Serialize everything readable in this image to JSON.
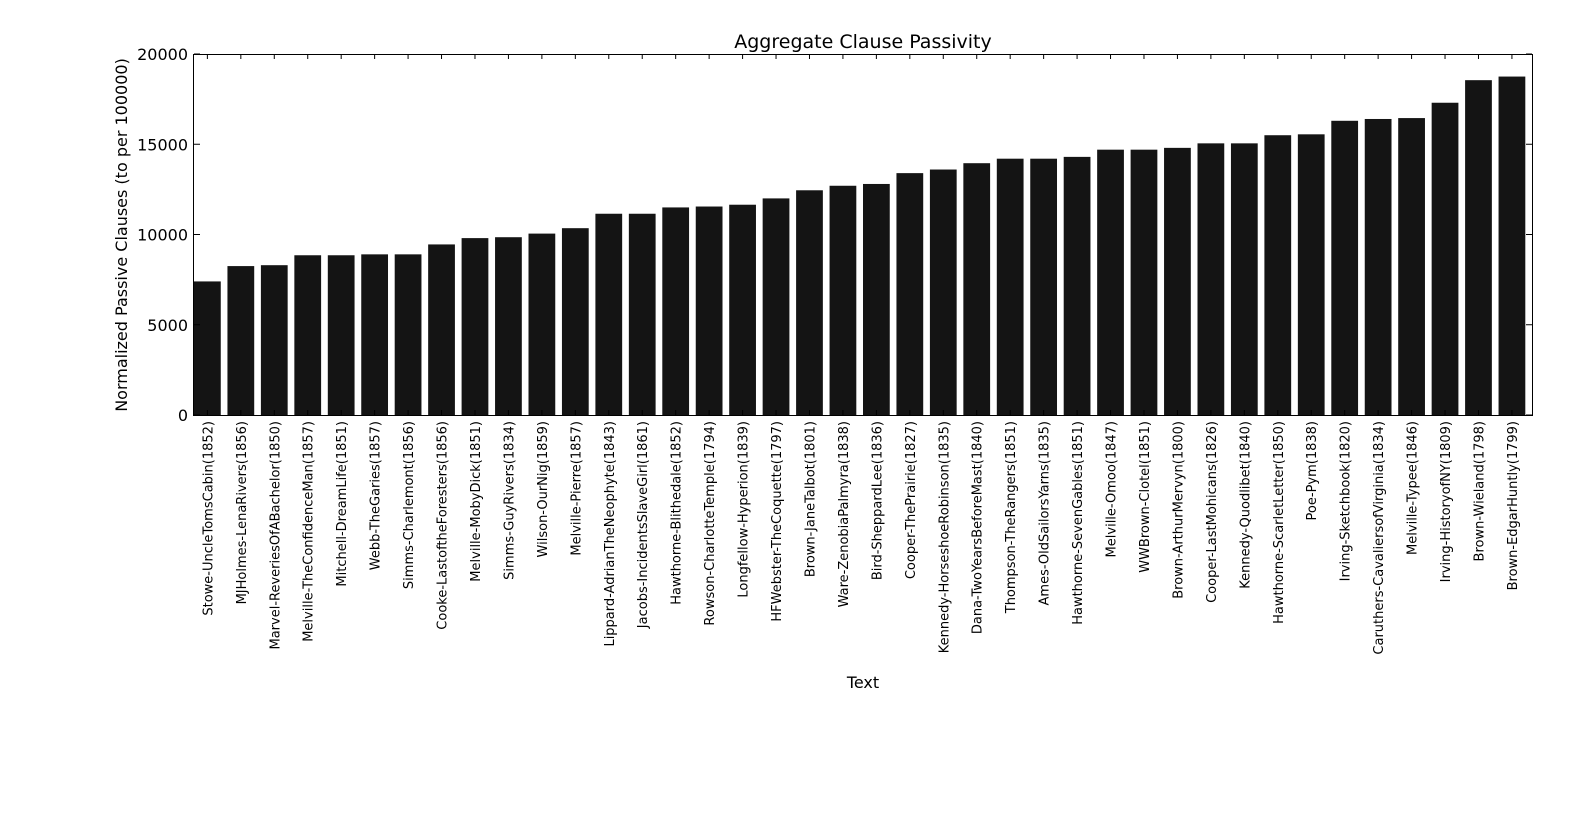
{
  "chart_data": {
    "type": "bar",
    "title": "Aggregate Clause Passivity",
    "xlabel": "Text",
    "ylabel": "Normalized Passive Clauses (to per 100000)",
    "ylim": [
      0,
      20000
    ],
    "yticks": [
      "0",
      "5000",
      "10000",
      "15000",
      "20000"
    ],
    "grid": false,
    "legend": "none",
    "bar_color": "#141414",
    "categories": [
      "Stowe-UncleTomsCabin(1852)",
      "MJHolmes-LenaRivers(1856)",
      "Marvel-ReveriesOfABachelor(1850)",
      "Melville-TheConfidenceMan(1857)",
      "Mitchell-DreamLife(1851)",
      "Webb-TheGaries(1857)",
      "Simms-Charlemont(1856)",
      "Cooke-LastoftheForesters(1856)",
      "Melville-MobyDick(1851)",
      "Simms-GuyRivers(1834)",
      "Wilson-OurNig(1859)",
      "Melville-Pierre(1857)",
      "Lippard-AdrianTheNeophyte(1843)",
      "Jacobs-IncidentsSlaveGirl(1861)",
      "Hawthorne-Blithedale(1852)",
      "Rowson-CharlotteTemple(1794)",
      "Longfellow-Hyperion(1839)",
      "HFWebster-TheCoquette(1797)",
      "Brown-JaneTalbot(1801)",
      "Ware-ZenobiaPalmyra(1838)",
      "Bird-SheppardLee(1836)",
      "Cooper-ThePrairie(1827)",
      "Kennedy-HorseshoeRobinson(1835)",
      "Dana-TwoYearsBeforeMast(1840)",
      "Thompson-TheRangers(1851)",
      "Ames-OldSailorsYarns(1835)",
      "Hawthorne-SevenGables(1851)",
      "Melville-Omoo(1847)",
      "WWBrown-Clotel(1851)",
      "Brown-ArthurMervyn(1800)",
      "Cooper-LastMohicans(1826)",
      "Kennedy-Quodlibet(1840)",
      "Hawthorne-ScarletLetter(1850)",
      "Poe-Pym(1838)",
      "Irving-Sketchbook(1820)",
      "Caruthers-CavaliersofVirginia(1834)",
      "Melville-Typee(1846)",
      "Irving-HistoryofNY(1809)",
      "Brown-Wieland(1798)",
      "Brown-EdgarHuntly(1799)"
    ],
    "values": [
      7400,
      8250,
      8300,
      8850,
      8850,
      8900,
      8900,
      9450,
      9800,
      9850,
      10050,
      10350,
      11150,
      11150,
      11500,
      11550,
      11650,
      12000,
      12450,
      12700,
      12800,
      13400,
      13600,
      13950,
      14200,
      14200,
      14300,
      14700,
      14700,
      14800,
      15050,
      15050,
      15500,
      15550,
      16300,
      16400,
      16450,
      17300,
      18550,
      18750
    ]
  }
}
